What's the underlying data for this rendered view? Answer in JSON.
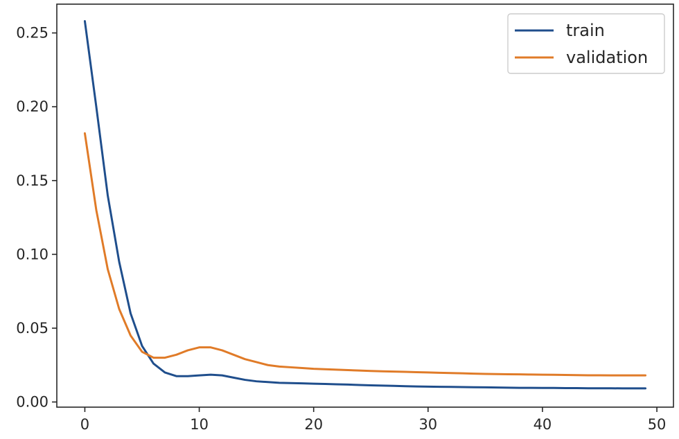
{
  "chart_data": {
    "type": "line",
    "title": "",
    "xlabel": "",
    "ylabel": "",
    "xlim": [
      -2.45,
      51.45
    ],
    "ylim": [
      -0.0035,
      0.2695
    ],
    "xticks": [
      0,
      10,
      20,
      30,
      40,
      50
    ],
    "xtick_labels": [
      "0",
      "10",
      "20",
      "30",
      "40",
      "50"
    ],
    "yticks": [
      0.0,
      0.05,
      0.1,
      0.15,
      0.2,
      0.25
    ],
    "ytick_labels": [
      "0.00",
      "0.05",
      "0.10",
      "0.15",
      "0.20",
      "0.25"
    ],
    "grid": false,
    "legend_position": "top-right",
    "series": [
      {
        "name": "train",
        "color": "#1f4e8c",
        "x": [
          0,
          1,
          2,
          3,
          4,
          5,
          6,
          7,
          8,
          9,
          10,
          11,
          12,
          13,
          14,
          15,
          16,
          17,
          18,
          19,
          20,
          21,
          22,
          23,
          24,
          25,
          26,
          27,
          28,
          29,
          30,
          31,
          32,
          33,
          34,
          35,
          36,
          37,
          38,
          39,
          40,
          41,
          42,
          43,
          44,
          45,
          46,
          47,
          48,
          49
        ],
        "y": [
          0.258,
          0.2,
          0.14,
          0.095,
          0.06,
          0.038,
          0.026,
          0.02,
          0.0175,
          0.0175,
          0.018,
          0.0185,
          0.018,
          0.0165,
          0.015,
          0.014,
          0.0135,
          0.013,
          0.0128,
          0.0126,
          0.0124,
          0.0122,
          0.012,
          0.0118,
          0.0115,
          0.0113,
          0.0111,
          0.0109,
          0.0107,
          0.0105,
          0.0104,
          0.0103,
          0.0102,
          0.0101,
          0.01,
          0.0099,
          0.0098,
          0.0097,
          0.0096,
          0.0096,
          0.0095,
          0.0095,
          0.0094,
          0.0094,
          0.0093,
          0.0093,
          0.0093,
          0.0092,
          0.0092,
          0.0092
        ]
      },
      {
        "name": "validation",
        "color": "#e07b28",
        "x": [
          0,
          1,
          2,
          3,
          4,
          5,
          6,
          7,
          8,
          9,
          10,
          11,
          12,
          13,
          14,
          15,
          16,
          17,
          18,
          19,
          20,
          21,
          22,
          23,
          24,
          25,
          26,
          27,
          28,
          29,
          30,
          31,
          32,
          33,
          34,
          35,
          36,
          37,
          38,
          39,
          40,
          41,
          42,
          43,
          44,
          45,
          46,
          47,
          48,
          49
        ],
        "y": [
          0.182,
          0.13,
          0.09,
          0.063,
          0.045,
          0.034,
          0.03,
          0.03,
          0.032,
          0.035,
          0.037,
          0.037,
          0.035,
          0.032,
          0.029,
          0.027,
          0.025,
          0.024,
          0.0235,
          0.023,
          0.0225,
          0.0222,
          0.0219,
          0.0216,
          0.0213,
          0.021,
          0.0208,
          0.0206,
          0.0204,
          0.0202,
          0.02,
          0.0198,
          0.0196,
          0.0194,
          0.0192,
          0.019,
          0.0189,
          0.0188,
          0.0187,
          0.0186,
          0.0185,
          0.0184,
          0.0183,
          0.0182,
          0.0181,
          0.0181,
          0.018,
          0.018,
          0.018,
          0.018
        ]
      }
    ]
  }
}
